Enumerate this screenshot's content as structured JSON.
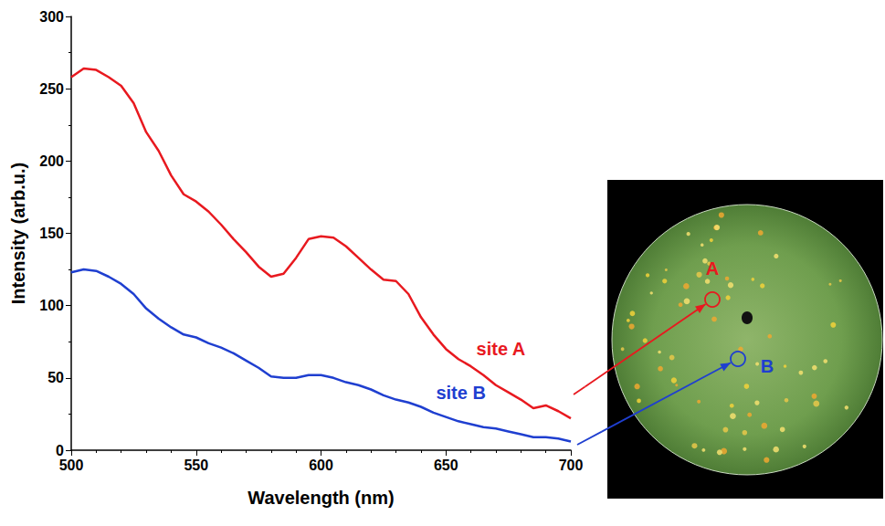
{
  "chart_data": {
    "type": "line",
    "xlabel": "Wavelength (nm)",
    "ylabel": "Intensity (arb.u.)",
    "x": [
      500,
      505,
      510,
      515,
      520,
      525,
      530,
      535,
      540,
      545,
      550,
      555,
      560,
      565,
      570,
      575,
      580,
      585,
      590,
      595,
      600,
      605,
      610,
      615,
      620,
      625,
      630,
      635,
      640,
      645,
      650,
      655,
      660,
      665,
      670,
      675,
      680,
      685,
      690,
      695,
      700
    ],
    "series": [
      {
        "name": "site A",
        "color": "#e8191f",
        "values": [
          258,
          264,
          263,
          258,
          252,
          240,
          220,
          207,
          190,
          177,
          172,
          165,
          156,
          146,
          137,
          127,
          120,
          122,
          133,
          146,
          148,
          147,
          141,
          133,
          125,
          118,
          117,
          108,
          92,
          80,
          70,
          63,
          58,
          52,
          45,
          40,
          35,
          29,
          31,
          27,
          22
        ]
      },
      {
        "name": "site B",
        "color": "#1f3fd0",
        "values": [
          123,
          125,
          124,
          120,
          115,
          108,
          98,
          91,
          85,
          80,
          78,
          74,
          71,
          67,
          62,
          57,
          51,
          50,
          50,
          52,
          52,
          50,
          47,
          45,
          42,
          38,
          35,
          33,
          30,
          26,
          23,
          20,
          18,
          16,
          15,
          13,
          11,
          9,
          9,
          8,
          6
        ]
      }
    ],
    "xlim": [
      500,
      700
    ],
    "ylim": [
      0,
      300
    ],
    "xticks": [
      500,
      550,
      600,
      650,
      700
    ],
    "yticks": [
      0,
      50,
      100,
      150,
      200,
      250,
      300
    ],
    "grid": false,
    "annotations": [
      {
        "text": "site A",
        "x": 672,
        "y": 70,
        "color": "#e8191f"
      },
      {
        "text": "site B",
        "x": 656,
        "y": 40,
        "color": "#1f3fd0"
      }
    ]
  },
  "photo_labels": [
    {
      "text": "A",
      "color": "#e8191f"
    },
    {
      "text": "B",
      "color": "#1f3fd0"
    }
  ]
}
